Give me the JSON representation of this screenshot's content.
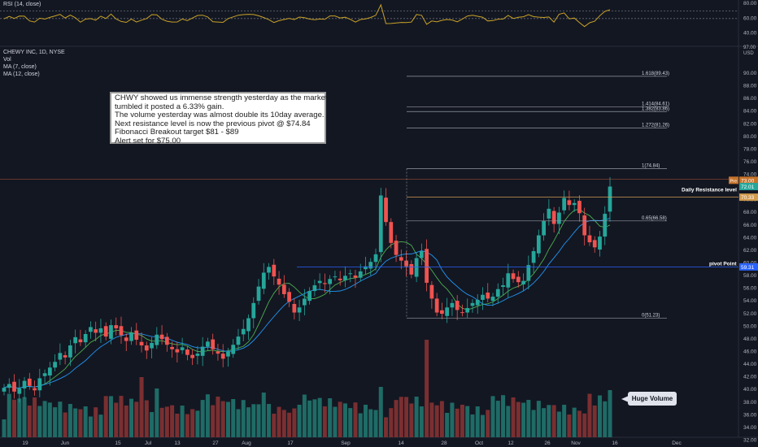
{
  "rsi": {
    "title": "RSI (14, close)",
    "ticks": [
      "80.00",
      "60.00",
      "40.00"
    ]
  },
  "symbol": {
    "title": "CHEWY INC, 1D, NYSE",
    "indicators": [
      "Vol",
      "MA (7, close)",
      "MA (12, close)"
    ]
  },
  "price_axis": {
    "header_top": "97.00",
    "header_unit": "USD",
    "ticks": [
      "90.00",
      "88.00",
      "86.00",
      "84.00",
      "82.00",
      "80.00",
      "78.00",
      "76.00",
      "74.00",
      "72.00",
      "70.00",
      "68.00",
      "66.00",
      "64.00",
      "62.00",
      "60.00",
      "58.00",
      "56.00",
      "54.00",
      "52.00",
      "50.00",
      "48.00",
      "46.00",
      "44.00",
      "42.00",
      "40.00",
      "38.00",
      "36.00",
      "34.00",
      "32.00"
    ],
    "pre_label": "Pre",
    "pre_value": "73.00",
    "last_value": "72.01",
    "resistance_value": "70.33",
    "pivot_value": "59.31"
  },
  "time_axis": [
    "19",
    "Jun",
    "15",
    "Jul",
    "13",
    "27",
    "Aug",
    "17",
    "Sep",
    "14",
    "28",
    "Oct",
    "12",
    "26",
    "Nov",
    "16",
    "Dec"
  ],
  "note": {
    "lines": [
      "CHWY showed us immense strength yesterday as the market",
      "tumbled it posted a 6.33% gain.",
      "The volume yesterday was almost double its 10day average.",
      "Next resistance level is now the previous pivot  @ $74.84",
      "Fibonacci Breakout target $81 - $89",
      "Alert set for $75.00"
    ]
  },
  "callout": "Huge Volume",
  "levels": {
    "daily_resistance": "Daily Resistance level",
    "pivot_point": "pivot Point"
  },
  "fib_labels": [
    "1.618(89.43)",
    "1.414(84.61)",
    "1.382(83.86)",
    "1.272(81.26)",
    "1(74.84)",
    "0.65(66.58)",
    "0(51.23)"
  ],
  "colors": {
    "up": "#26a69a",
    "down": "#ef5350",
    "vol_up": "#1f6b66",
    "vol_down": "#7a2f31",
    "ma7": "#4caf50",
    "ma12": "#2196f3",
    "rsi": "#c9a227"
  },
  "chart_data": {
    "type": "candlestick",
    "title": "CHEWY INC, 1D, NYSE",
    "ylim": [
      32,
      97
    ],
    "fib_levels": [
      {
        "ratio": 1.618,
        "value": 89.43
      },
      {
        "ratio": 1.414,
        "value": 84.61
      },
      {
        "ratio": 1.382,
        "value": 83.86
      },
      {
        "ratio": 1.272,
        "value": 81.26
      },
      {
        "ratio": 1,
        "value": 74.84
      },
      {
        "ratio": 0.65,
        "value": 66.58
      },
      {
        "ratio": 0,
        "value": 51.23
      }
    ],
    "daily_resistance": 70.33,
    "pivot_point": 59.31,
    "last_close": 72.01,
    "premarket": 73.0,
    "closes": [
      40.2,
      40.8,
      39.6,
      40.1,
      41.3,
      40.5,
      39.8,
      41.7,
      42.5,
      43.4,
      44.3,
      45.7,
      45.0,
      46.9,
      48.2,
      47.4,
      48.7,
      49.8,
      48.9,
      49.6,
      48.3,
      50.1,
      49.6,
      48.5,
      47.6,
      48.9,
      47.8,
      46.9,
      46.1,
      47.3,
      48.6,
      47.9,
      47.0,
      46.3,
      45.8,
      46.6,
      45.4,
      44.9,
      45.6,
      46.7,
      47.5,
      46.3,
      45.6,
      44.8,
      45.9,
      47.0,
      48.3,
      49.5,
      51.2,
      53.6,
      56.2,
      58.4,
      59.3,
      57.8,
      56.5,
      55.0,
      53.8,
      52.1,
      52.9,
      54.3,
      55.5,
      56.4,
      57.1,
      56.6,
      57.4,
      57.8,
      57.2,
      57.9,
      58.3,
      57.6,
      58.6,
      59.4,
      60.1,
      61.3,
      70.6,
      66.4,
      63.1,
      61.2,
      60.3,
      59.4,
      58.1,
      60.7,
      61.8,
      56.8,
      54.3,
      52.1,
      51.9,
      52.9,
      53.6,
      52.5,
      52.1,
      52.8,
      53.6,
      54.1,
      54.9,
      54.3,
      54.6,
      55.8,
      56.4,
      58.3,
      57.4,
      56.9,
      57.1,
      59.6,
      61.8,
      64.3,
      66.6,
      68.5,
      66.1,
      67.9,
      70.2,
      69.1,
      69.4,
      67.8,
      64.3,
      63.2,
      62.4,
      64.1,
      67.7,
      72.01
    ]
  }
}
